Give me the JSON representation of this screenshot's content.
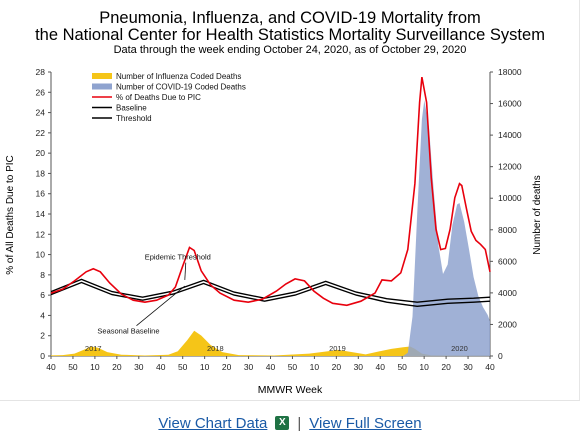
{
  "chart_data": {
    "type": "line",
    "title": "Pneumonia, Influenza, and COVID-19 Mortality from",
    "title_line2": "the National Center for Health Statistics Mortality Surveillance System",
    "subtitle": "Data through the week ending October 24, 2020, as of October 29, 2020",
    "xlabel": "MMWR Week",
    "ylabel_left": "% of All Deaths Due to PIC",
    "ylabel_right": "Number of deaths",
    "ylim_left": [
      0,
      28
    ],
    "ylim_right": [
      0,
      18000
    ],
    "yticks_left": [
      0,
      2,
      4,
      6,
      8,
      10,
      12,
      14,
      16,
      18,
      20,
      22,
      24,
      26,
      28
    ],
    "yticks_right": [
      0,
      2000,
      4000,
      6000,
      8000,
      10000,
      12000,
      14000,
      16000,
      18000
    ],
    "x_week_index_range": [
      0,
      187
    ],
    "xtick_labels": [
      "40",
      "50",
      "10",
      "20",
      "30",
      "40",
      "50",
      "10",
      "20",
      "30",
      "40",
      "50",
      "10",
      "20",
      "30",
      "40",
      "50",
      "10",
      "20",
      "30",
      "40"
    ],
    "year_labels": [
      {
        "text": "2017",
        "week_index": 18
      },
      {
        "text": "2018",
        "week_index": 70
      },
      {
        "text": "2019",
        "week_index": 122
      },
      {
        "text": "2020",
        "week_index": 174
      }
    ],
    "legend": [
      {
        "label": "Number of Influenza Coded Deaths",
        "kind": "area",
        "color": "#f5c518"
      },
      {
        "label": "Number of COVID-19 Coded Deaths",
        "kind": "area",
        "color": "#8fa3cf"
      },
      {
        "label": "% of Deaths Due to PIC",
        "kind": "line",
        "color": "#e8000d"
      },
      {
        "label": "Baseline",
        "kind": "line",
        "color": "#000000"
      },
      {
        "label": "Threshold",
        "kind": "line",
        "color": "#000000"
      }
    ],
    "annotations": [
      {
        "text": "Epidemic Threshold",
        "at_week_index": 54,
        "y": 9.5,
        "arrow_to_week": 57,
        "arrow_to_y": 7.5
      },
      {
        "text": "Seasonal Baseline",
        "at_week_index": 33,
        "y": 2.2,
        "arrow_to_week": 57,
        "arrow_to_y": 6.9
      }
    ],
    "series": [
      {
        "name": "% of Deaths Due to PIC",
        "axis": "left",
        "points": [
          [
            0,
            6.2
          ],
          [
            5,
            6.6
          ],
          [
            10,
            7.4
          ],
          [
            15,
            8.3
          ],
          [
            18,
            8.6
          ],
          [
            21,
            8.3
          ],
          [
            25,
            7.2
          ],
          [
            30,
            6.1
          ],
          [
            35,
            5.5
          ],
          [
            40,
            5.3
          ],
          [
            45,
            5.5
          ],
          [
            50,
            6.0
          ],
          [
            53,
            6.8
          ],
          [
            56,
            8.8
          ],
          [
            59,
            10.7
          ],
          [
            61,
            10.4
          ],
          [
            64,
            8.4
          ],
          [
            68,
            7.0
          ],
          [
            72,
            6.2
          ],
          [
            78,
            5.5
          ],
          [
            84,
            5.3
          ],
          [
            90,
            5.6
          ],
          [
            96,
            6.4
          ],
          [
            100,
            7.1
          ],
          [
            104,
            7.6
          ],
          [
            108,
            7.4
          ],
          [
            112,
            6.4
          ],
          [
            116,
            5.7
          ],
          [
            120,
            5.2
          ],
          [
            126,
            5.0
          ],
          [
            132,
            5.4
          ],
          [
            138,
            6.2
          ],
          [
            141,
            7.5
          ],
          [
            145,
            7.4
          ],
          [
            149,
            8.2
          ],
          [
            152,
            10.5
          ],
          [
            155,
            17.0
          ],
          [
            157,
            25.0
          ],
          [
            158,
            27.5
          ],
          [
            160,
            25.0
          ],
          [
            162,
            17.5
          ],
          [
            164,
            12.5
          ],
          [
            166,
            10.5
          ],
          [
            168,
            10.6
          ],
          [
            170,
            12.5
          ],
          [
            172,
            15.6
          ],
          [
            174,
            17.0
          ],
          [
            175,
            16.8
          ],
          [
            177,
            14.5
          ],
          [
            179,
            12.3
          ],
          [
            181,
            11.4
          ],
          [
            183,
            11.0
          ],
          [
            185,
            10.5
          ],
          [
            187,
            8.3
          ]
        ]
      },
      {
        "name": "Baseline",
        "axis": "left",
        "points": [
          [
            0,
            6.05
          ],
          [
            13,
            7.25
          ],
          [
            26,
            6.05
          ],
          [
            39,
            5.5
          ],
          [
            52,
            6.1
          ],
          [
            65,
            7.15
          ],
          [
            78,
            6.0
          ],
          [
            91,
            5.4
          ],
          [
            104,
            6.0
          ],
          [
            117,
            7.05
          ],
          [
            130,
            6.0
          ],
          [
            143,
            5.3
          ],
          [
            156,
            4.9
          ],
          [
            169,
            5.2
          ],
          [
            180,
            5.3
          ],
          [
            187,
            5.4
          ]
        ]
      },
      {
        "name": "Threshold",
        "axis": "left",
        "points": [
          [
            0,
            6.35
          ],
          [
            13,
            7.55
          ],
          [
            26,
            6.35
          ],
          [
            39,
            5.8
          ],
          [
            52,
            6.4
          ],
          [
            65,
            7.45
          ],
          [
            78,
            6.3
          ],
          [
            91,
            5.7
          ],
          [
            104,
            6.3
          ],
          [
            117,
            7.35
          ],
          [
            130,
            6.3
          ],
          [
            143,
            5.65
          ],
          [
            156,
            5.3
          ],
          [
            169,
            5.6
          ],
          [
            180,
            5.7
          ],
          [
            187,
            5.8
          ]
        ]
      },
      {
        "name": "Number of Influenza Coded Deaths",
        "axis": "right",
        "points": [
          [
            0,
            40
          ],
          [
            5,
            60
          ],
          [
            10,
            150
          ],
          [
            14,
            400
          ],
          [
            17,
            600
          ],
          [
            20,
            520
          ],
          [
            24,
            250
          ],
          [
            30,
            80
          ],
          [
            40,
            30
          ],
          [
            50,
            80
          ],
          [
            54,
            300
          ],
          [
            58,
            1000
          ],
          [
            61,
            1600
          ],
          [
            64,
            1300
          ],
          [
            68,
            700
          ],
          [
            73,
            250
          ],
          [
            80,
            60
          ],
          [
            95,
            30
          ],
          [
            110,
            150
          ],
          [
            118,
            300
          ],
          [
            122,
            400
          ],
          [
            126,
            300
          ],
          [
            134,
            100
          ],
          [
            140,
            300
          ],
          [
            145,
            450
          ],
          [
            150,
            550
          ],
          [
            153,
            600
          ],
          [
            155,
            450
          ],
          [
            158,
            150
          ],
          [
            162,
            40
          ],
          [
            187,
            10
          ]
        ]
      },
      {
        "name": "Number of COVID-19 Coded Deaths",
        "axis": "right",
        "points": [
          [
            150,
            0
          ],
          [
            152,
            200
          ],
          [
            154,
            2500
          ],
          [
            156,
            9000
          ],
          [
            158,
            15000
          ],
          [
            159,
            16200
          ],
          [
            161,
            14500
          ],
          [
            163,
            10500
          ],
          [
            165,
            7000
          ],
          [
            167,
            5200
          ],
          [
            169,
            5800
          ],
          [
            171,
            8300
          ],
          [
            173,
            9600
          ],
          [
            174,
            9700
          ],
          [
            176,
            8500
          ],
          [
            178,
            6800
          ],
          [
            180,
            5000
          ],
          [
            182,
            3800
          ],
          [
            184,
            3100
          ],
          [
            186,
            2600
          ],
          [
            187,
            2200
          ]
        ]
      }
    ]
  },
  "footer": {
    "view_chart_data": "View Chart Data",
    "excel_icon": "excel-icon",
    "separator": "|",
    "view_full_screen": "View Full Screen"
  }
}
